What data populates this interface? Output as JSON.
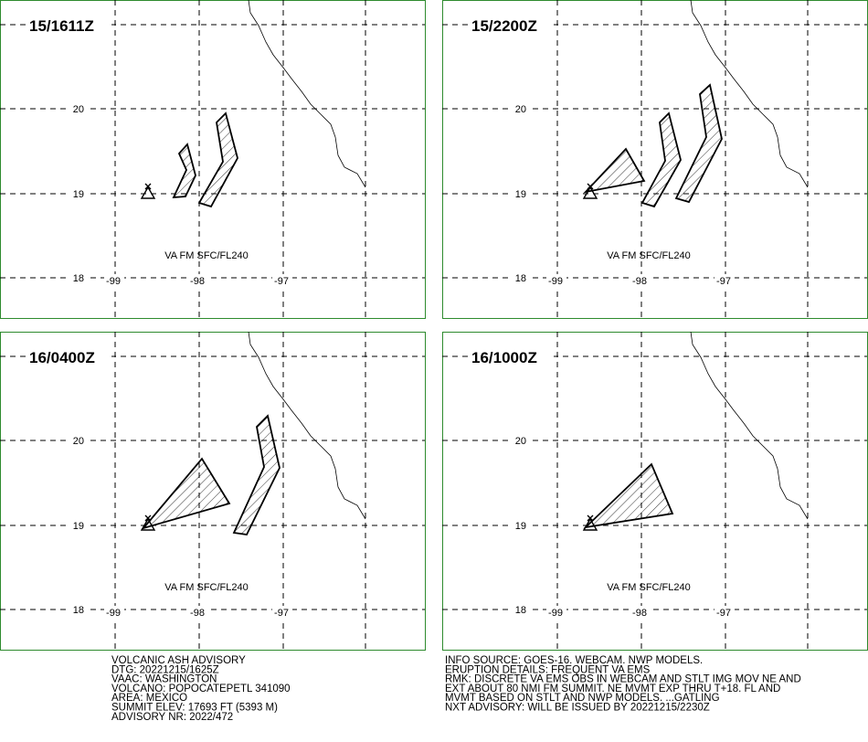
{
  "panels": [
    {
      "time": "15/1611Z",
      "level": "VA FM SFC/FL240"
    },
    {
      "time": "15/2200Z",
      "level": "VA FM SFC/FL240"
    },
    {
      "time": "16/0400Z",
      "level": "VA FM SFC/FL240"
    },
    {
      "time": "16/1000Z",
      "level": "VA FM SFC/FL240"
    }
  ],
  "lat_labels": [
    "20",
    "19",
    "18"
  ],
  "lon_labels": [
    "-99",
    "-98",
    "-97"
  ],
  "advisory": {
    "left": [
      "VOLCANIC ASH ADVISORY",
      "DTG: 20221215/1625Z",
      "VAAC: WASHINGTON",
      "VOLCANO: POPOCATEPETL 341090",
      "AREA: MEXICO",
      "SUMMIT ELEV: 17693 FT (5393 M)",
      "ADVISORY NR: 2022/472"
    ],
    "right": [
      "INFO SOURCE: GOES-16. WEBCAM. NWP MODELS.",
      "ERUPTION DETAILS: FREQUENT VA EMS",
      "RMK: DISCRETE VA EMS OBS IN WEBCAM AND STLT IMG MOV NE AND",
      "EXT ABOUT 80 NMI FM SUMMIT. NE MVMT EXP THRU T+18. FL AND",
      "MVMT BASED ON STLT AND NWP MODELS. ...GATLING",
      "NXT ADVISORY: WILL BE ISSUED BY 20221215/2230Z"
    ]
  }
}
